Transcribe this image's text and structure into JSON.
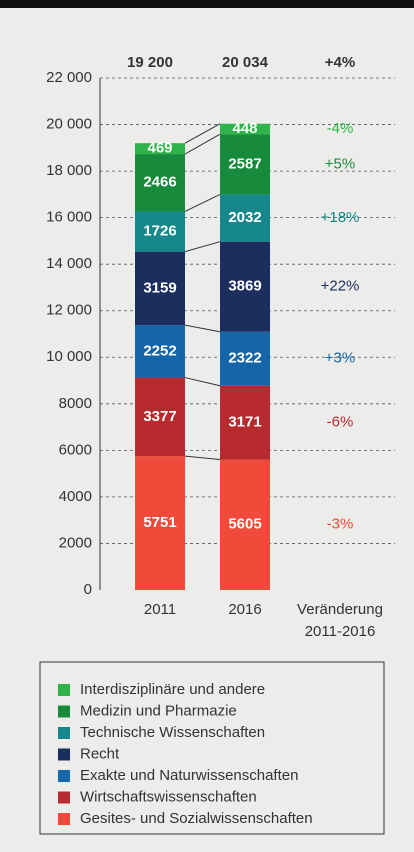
{
  "chart_data": {
    "type": "stacked_bar",
    "categories": [
      "2011",
      "2016"
    ],
    "totals": [
      19200,
      20034
    ],
    "totals_labels": [
      "19 200",
      "20 034"
    ],
    "total_change": "+4%",
    "change_label": "Veränderung",
    "change_period": "2011-2016",
    "series": [
      {
        "name": "Gesites- und Sozialwissenschaften",
        "color": "#f04a3a",
        "values": [
          5751,
          5605
        ],
        "change": "-3%"
      },
      {
        "name": "Wirtschaftswissenschaften",
        "color": "#b72a2e",
        "values": [
          3377,
          3171
        ],
        "change": "-6%"
      },
      {
        "name": "Exakte und Naturwissenschaften",
        "color": "#1565a8",
        "values": [
          2252,
          2322
        ],
        "change": "+3%"
      },
      {
        "name": "Recht",
        "color": "#1c2e5e",
        "values": [
          3159,
          3869
        ],
        "change": "+22%"
      },
      {
        "name": "Technische Wissenschaften",
        "color": "#16878a",
        "values": [
          1726,
          2032
        ],
        "change": "+18%"
      },
      {
        "name": "Medizin und Pharmazie",
        "color": "#178a3c",
        "values": [
          2466,
          2587
        ],
        "change": "+5%"
      },
      {
        "name": "Interdisziplinäre und andere",
        "color": "#2fb34a",
        "values": [
          469,
          448
        ],
        "change": "-4%"
      }
    ],
    "ylim": [
      0,
      22000
    ],
    "yticks": [
      0,
      2000,
      4000,
      6000,
      8000,
      {
        "value": 10000,
        "label": "10 000"
      },
      {
        "value": 12000,
        "label": "12 000"
      },
      {
        "value": 14000,
        "label": "14 000"
      },
      {
        "value": 16000,
        "label": "16 000"
      },
      {
        "value": 18000,
        "label": "18 000"
      },
      {
        "value": 20000,
        "label": "20 000"
      },
      {
        "value": 22000,
        "label": "22 000"
      }
    ],
    "grid": true
  }
}
